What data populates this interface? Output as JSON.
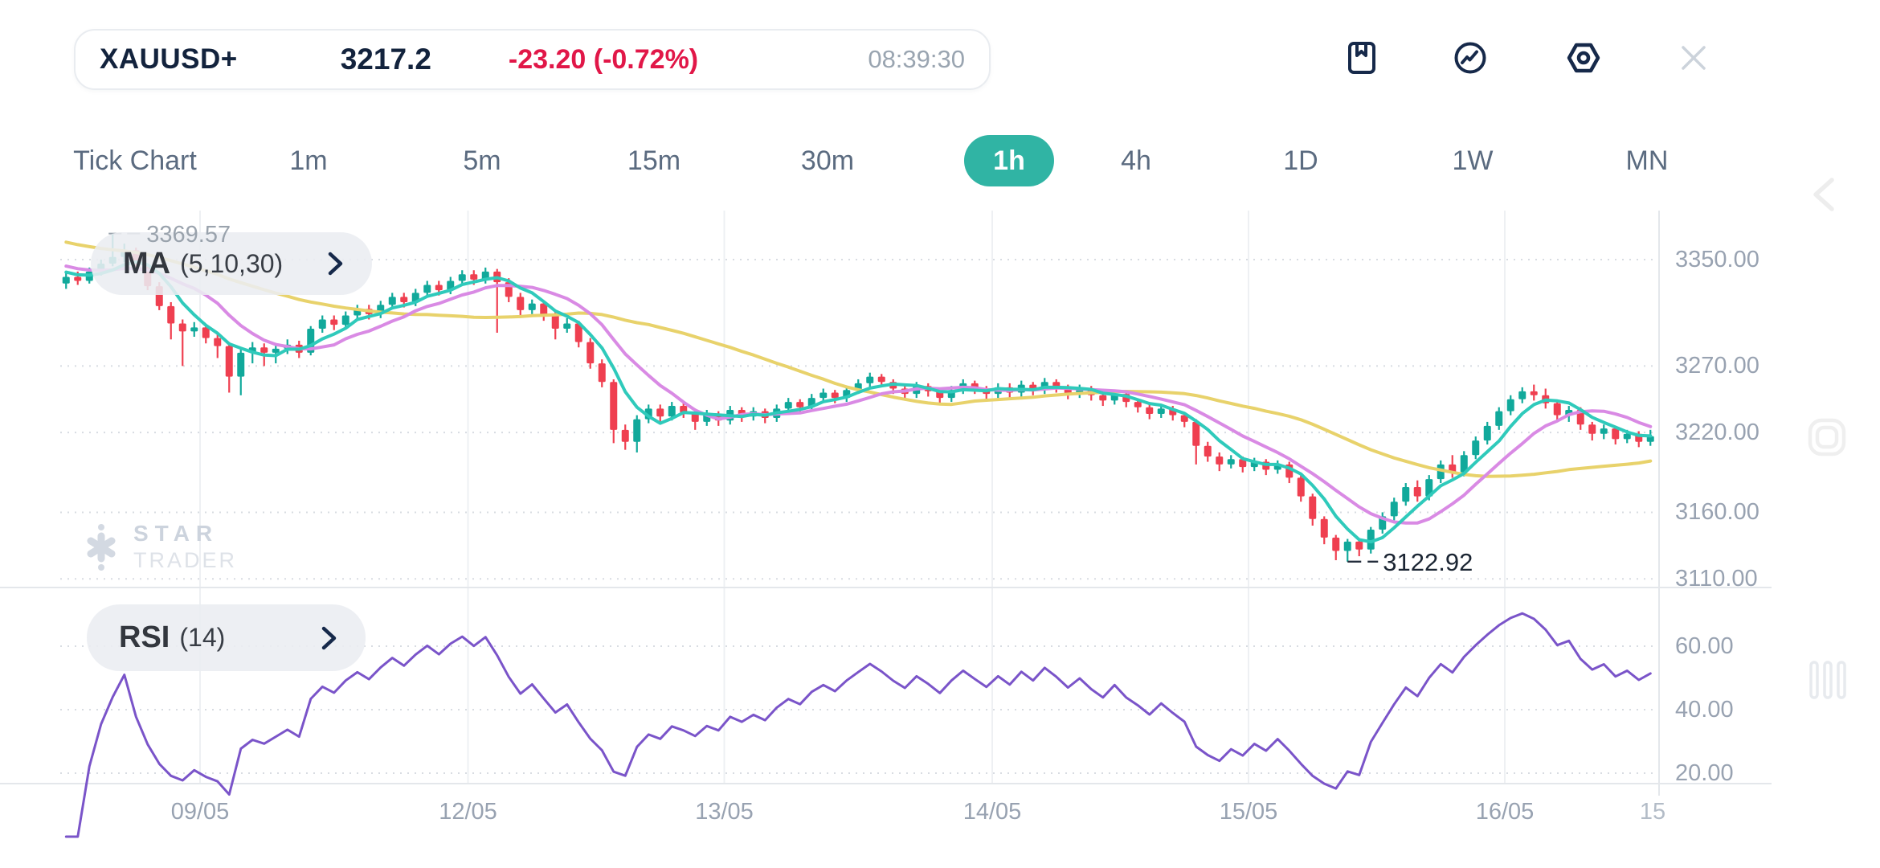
{
  "header": {
    "symbol": "XAUUSD+",
    "price": "3217.2",
    "change": "-23.20 (-0.72%)",
    "time": "08:39:30"
  },
  "toolbar": {
    "icons": [
      "bookmark-icon",
      "indicator-trend-icon",
      "settings-icon",
      "close-icon"
    ]
  },
  "timeframes": {
    "items": [
      {
        "label": "Tick Chart"
      },
      {
        "label": "1m"
      },
      {
        "label": "5m"
      },
      {
        "label": "15m"
      },
      {
        "label": "30m"
      },
      {
        "label": "1h",
        "selected": true
      },
      {
        "label": "4h"
      },
      {
        "label": "1D"
      },
      {
        "label": "1W"
      },
      {
        "label": "MN"
      }
    ],
    "selected": "1h"
  },
  "chart": {
    "ma_title": "MA",
    "ma_params": "(5,10,30)",
    "rsi_title": "RSI",
    "rsi_params": "(14)",
    "high_label": "3369.57",
    "low_label": "3122.92",
    "partial_time_label": "15",
    "price_axis_labels": [
      "3350.00",
      "3270.00",
      "3220.00",
      "3160.00",
      "3110.00"
    ],
    "rsi_axis_labels": [
      "60.00",
      "40.00",
      "20.00"
    ]
  },
  "watermark": {
    "line1": "STAR",
    "line2": "TRADER"
  },
  "colors": {
    "accent_teal": "#30b4a4",
    "negative_red": "#e11748",
    "candle_up": "#11a99b",
    "candle_down": "#ef3f50",
    "ma5": "#2fcabb",
    "ma10": "#d98ae4",
    "ma30": "#e8d26b",
    "rsi": "#7a54c9",
    "axis_text": "#98a2b1",
    "grid_dot": "#d8dce2",
    "grid_vertical": "#eef0f3",
    "separator": "#e4e7eb",
    "high_label": "#9aa3ad",
    "low_label": "#242e3c"
  },
  "chart_data": {
    "type": "candlestick",
    "symbol": "XAUUSD+",
    "timeframe": "1h",
    "title": "XAUUSD+ 1h with MA(5,10,30) and RSI(14)",
    "price_axis_values": [
      3350,
      3270,
      3220,
      3160,
      3110
    ],
    "price_ylim": [
      3105,
      3385
    ],
    "rsi_axis_values": [
      60,
      40,
      20
    ],
    "rsi_ylim": [
      15,
      80
    ],
    "high_marker": {
      "index": 4,
      "value": 3369.57
    },
    "low_marker": {
      "index": 110,
      "value": 3122.92
    },
    "last_close": 3217.2,
    "day_ticks": [
      {
        "index": 12,
        "label": "09/05"
      },
      {
        "index": 35,
        "label": "12/05"
      },
      {
        "index": 57,
        "label": "13/05"
      },
      {
        "index": 80,
        "label": "14/05"
      },
      {
        "index": 102,
        "label": "15/05"
      },
      {
        "index": 124,
        "label": "16/05"
      }
    ],
    "indicators": {
      "ma_periods": [
        5,
        10,
        30
      ],
      "rsi_period": 14
    },
    "candles": [
      [
        3332,
        3340,
        3328,
        3337
      ],
      [
        3337,
        3341,
        3331,
        3334
      ],
      [
        3334,
        3344,
        3332,
        3341
      ],
      [
        3341,
        3350,
        3338,
        3347
      ],
      [
        3347,
        3369.57,
        3345,
        3352
      ],
      [
        3352,
        3362,
        3348,
        3357
      ],
      [
        3357,
        3359,
        3341,
        3344
      ],
      [
        3344,
        3347,
        3327,
        3330
      ],
      [
        3330,
        3333,
        3312,
        3315
      ],
      [
        3315,
        3318,
        3290,
        3302
      ],
      [
        3302,
        3305,
        3270,
        3296
      ],
      [
        3296,
        3303,
        3292,
        3299
      ],
      [
        3299,
        3301,
        3287,
        3291
      ],
      [
        3291,
        3294,
        3276,
        3285
      ],
      [
        3285,
        3288,
        3250,
        3262
      ],
      [
        3262,
        3283,
        3248,
        3280
      ],
      [
        3280,
        3288,
        3272,
        3284
      ],
      [
        3284,
        3287,
        3270,
        3280
      ],
      [
        3280,
        3287,
        3272,
        3283
      ],
      [
        3283,
        3290,
        3279,
        3286
      ],
      [
        3286,
        3289,
        3276,
        3280
      ],
      [
        3280,
        3300,
        3278,
        3298
      ],
      [
        3298,
        3308,
        3295,
        3305
      ],
      [
        3305,
        3308,
        3297,
        3301
      ],
      [
        3301,
        3311,
        3299,
        3308
      ],
      [
        3308,
        3316,
        3305,
        3313
      ],
      [
        3313,
        3316,
        3305,
        3309
      ],
      [
        3309,
        3319,
        3306,
        3316
      ],
      [
        3316,
        3325,
        3313,
        3322
      ],
      [
        3322,
        3325,
        3314,
        3318
      ],
      [
        3318,
        3328,
        3315,
        3325
      ],
      [
        3325,
        3334,
        3322,
        3331
      ],
      [
        3331,
        3334,
        3323,
        3327
      ],
      [
        3327,
        3337,
        3324,
        3334
      ],
      [
        3334,
        3342,
        3331,
        3339
      ],
      [
        3339,
        3342,
        3331,
        3335
      ],
      [
        3335,
        3344,
        3332,
        3341
      ],
      [
        3341,
        3343,
        3295,
        3333
      ],
      [
        3333,
        3336,
        3318,
        3322
      ],
      [
        3322,
        3325,
        3308,
        3312
      ],
      [
        3312,
        3320,
        3309,
        3317
      ],
      [
        3317,
        3319,
        3304,
        3308
      ],
      [
        3308,
        3311,
        3290,
        3298
      ],
      [
        3298,
        3306,
        3295,
        3302
      ],
      [
        3302,
        3304,
        3284,
        3288
      ],
      [
        3288,
        3291,
        3268,
        3272
      ],
      [
        3272,
        3275,
        3254,
        3258
      ],
      [
        3258,
        3260,
        3212,
        3222
      ],
      [
        3222,
        3226,
        3207,
        3213
      ],
      [
        3213,
        3233,
        3205,
        3230
      ],
      [
        3230,
        3241,
        3227,
        3238
      ],
      [
        3238,
        3241,
        3228,
        3232
      ],
      [
        3232,
        3243,
        3229,
        3240
      ],
      [
        3240,
        3242,
        3231,
        3235
      ],
      [
        3235,
        3238,
        3222,
        3228
      ],
      [
        3228,
        3237,
        3225,
        3234
      ],
      [
        3234,
        3236,
        3225,
        3229
      ],
      [
        3229,
        3240,
        3226,
        3237
      ],
      [
        3237,
        3239,
        3228,
        3232
      ],
      [
        3232,
        3239,
        3229,
        3236
      ],
      [
        3236,
        3238,
        3227,
        3231
      ],
      [
        3231,
        3241,
        3228,
        3238
      ],
      [
        3238,
        3246,
        3235,
        3243
      ],
      [
        3243,
        3245,
        3235,
        3239
      ],
      [
        3239,
        3249,
        3236,
        3246
      ],
      [
        3246,
        3253,
        3243,
        3250
      ],
      [
        3250,
        3252,
        3242,
        3246
      ],
      [
        3246,
        3255,
        3243,
        3252
      ],
      [
        3252,
        3260,
        3249,
        3257
      ],
      [
        3257,
        3265,
        3254,
        3262
      ],
      [
        3262,
        3264,
        3254,
        3258
      ],
      [
        3258,
        3260,
        3249,
        3253
      ],
      [
        3253,
        3256,
        3245,
        3249
      ],
      [
        3249,
        3258,
        3246,
        3255
      ],
      [
        3255,
        3257,
        3247,
        3251
      ],
      [
        3251,
        3253,
        3242,
        3246
      ],
      [
        3246,
        3255,
        3243,
        3252
      ],
      [
        3252,
        3260,
        3249,
        3257
      ],
      [
        3257,
        3259,
        3249,
        3253
      ],
      [
        3253,
        3255,
        3245,
        3249
      ],
      [
        3249,
        3257,
        3246,
        3254
      ],
      [
        3254,
        3257,
        3246,
        3250
      ],
      [
        3250,
        3259,
        3247,
        3256
      ],
      [
        3256,
        3258,
        3248,
        3252
      ],
      [
        3252,
        3261,
        3249,
        3258
      ],
      [
        3258,
        3260,
        3250,
        3254
      ],
      [
        3254,
        3256,
        3245,
        3249
      ],
      [
        3249,
        3256,
        3246,
        3253
      ],
      [
        3253,
        3255,
        3244,
        3248
      ],
      [
        3248,
        3250,
        3240,
        3244
      ],
      [
        3244,
        3252,
        3241,
        3249
      ],
      [
        3249,
        3251,
        3239,
        3243
      ],
      [
        3243,
        3245,
        3235,
        3239
      ],
      [
        3239,
        3241,
        3230,
        3234
      ],
      [
        3234,
        3241,
        3231,
        3238
      ],
      [
        3238,
        3240,
        3229,
        3233
      ],
      [
        3233,
        3235,
        3224,
        3228
      ],
      [
        3228,
        3230,
        3196,
        3210
      ],
      [
        3210,
        3213,
        3198,
        3202
      ],
      [
        3202,
        3205,
        3191,
        3196
      ],
      [
        3196,
        3203,
        3193,
        3200
      ],
      [
        3200,
        3202,
        3190,
        3194
      ],
      [
        3194,
        3201,
        3191,
        3198
      ],
      [
        3198,
        3200,
        3188,
        3192
      ],
      [
        3192,
        3199,
        3189,
        3196
      ],
      [
        3196,
        3198,
        3182,
        3186
      ],
      [
        3186,
        3188,
        3168,
        3172
      ],
      [
        3172,
        3174,
        3150,
        3155
      ],
      [
        3155,
        3157,
        3136,
        3141
      ],
      [
        3141,
        3143,
        3124,
        3131
      ],
      [
        3131,
        3140,
        3122.92,
        3138
      ],
      [
        3138,
        3140,
        3127,
        3132
      ],
      [
        3132,
        3149,
        3129,
        3147
      ],
      [
        3147,
        3160,
        3144,
        3157
      ],
      [
        3157,
        3171,
        3154,
        3168
      ],
      [
        3168,
        3182,
        3165,
        3179
      ],
      [
        3179,
        3184,
        3168,
        3172
      ],
      [
        3172,
        3188,
        3169,
        3185
      ],
      [
        3185,
        3199,
        3182,
        3196
      ],
      [
        3196,
        3203,
        3186,
        3190
      ],
      [
        3190,
        3206,
        3187,
        3203
      ],
      [
        3203,
        3217,
        3200,
        3214
      ],
      [
        3214,
        3228,
        3211,
        3225
      ],
      [
        3225,
        3239,
        3222,
        3236
      ],
      [
        3236,
        3248,
        3233,
        3245
      ],
      [
        3245,
        3254,
        3242,
        3251
      ],
      [
        3251,
        3256,
        3244,
        3248
      ],
      [
        3248,
        3253,
        3238,
        3242
      ],
      [
        3242,
        3244,
        3229,
        3233
      ],
      [
        3233,
        3240,
        3228,
        3237
      ],
      [
        3237,
        3239,
        3222,
        3226
      ],
      [
        3226,
        3228,
        3214,
        3219
      ],
      [
        3219,
        3226,
        3215,
        3223
      ],
      [
        3223,
        3225,
        3211,
        3215
      ],
      [
        3215,
        3222,
        3212,
        3219
      ],
      [
        3219,
        3221,
        3209,
        3213
      ],
      [
        3213,
        3222,
        3210,
        3217.2
      ]
    ]
  }
}
